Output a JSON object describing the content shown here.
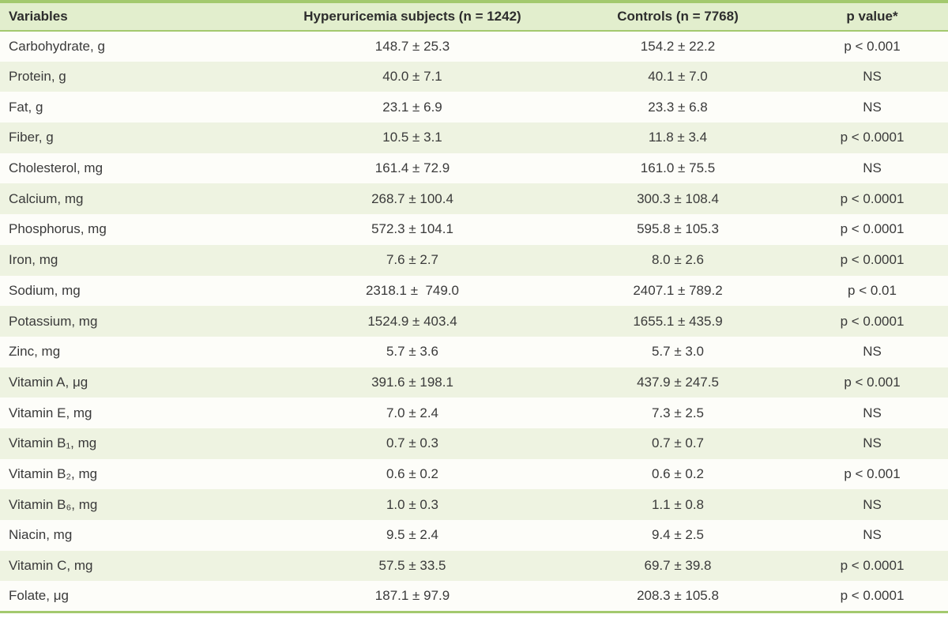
{
  "table": {
    "colors": {
      "accent_green": "#a3c96e",
      "header_background": "#e2eecd",
      "stripe_background": "#eef3e1",
      "text": "#3a3a3a"
    },
    "columns": [
      {
        "label": "Variables"
      },
      {
        "label": "Hyperuricemia subjects (n = 1242)"
      },
      {
        "label": "Controls (n = 7768)"
      },
      {
        "label": "p value*"
      }
    ],
    "rows": [
      {
        "variable": "Carbohydrate, g",
        "hyperuricemia": "148.7 ± 25.3",
        "controls": "154.2 ± 22.2",
        "p_value": "p < 0.001"
      },
      {
        "variable": "Protein, g",
        "hyperuricemia": "40.0 ± 7.1",
        "controls": "40.1 ± 7.0",
        "p_value": "NS"
      },
      {
        "variable": "Fat, g",
        "hyperuricemia": "23.1 ± 6.9",
        "controls": "23.3 ± 6.8",
        "p_value": "NS"
      },
      {
        "variable": "Fiber, g",
        "hyperuricemia": "10.5 ± 3.1",
        "controls": "11.8 ± 3.4",
        "p_value": "p < 0.0001"
      },
      {
        "variable": "Cholesterol, mg",
        "hyperuricemia": "161.4 ± 72.9",
        "controls": "161.0 ± 75.5",
        "p_value": "NS"
      },
      {
        "variable": "Calcium, mg",
        "hyperuricemia": "268.7 ± 100.4",
        "controls": "300.3 ± 108.4",
        "p_value": "p < 0.0001"
      },
      {
        "variable": "Phosphorus, mg",
        "hyperuricemia": "572.3 ± 104.1",
        "controls": "595.8 ± 105.3",
        "p_value": "p < 0.0001"
      },
      {
        "variable": "Iron, mg",
        "hyperuricemia": "7.6 ± 2.7",
        "controls": "8.0 ± 2.6",
        "p_value": "p < 0.0001"
      },
      {
        "variable": "Sodium, mg",
        "hyperuricemia": "2318.1 ±  749.0",
        "controls": "2407.1 ± 789.2",
        "p_value": "p < 0.01"
      },
      {
        "variable": "Potassium, mg",
        "hyperuricemia": "1524.9 ± 403.4",
        "controls": "1655.1 ± 435.9",
        "p_value": "p < 0.0001"
      },
      {
        "variable": "Zinc, mg",
        "hyperuricemia": "5.7 ± 3.6",
        "controls": "5.7 ± 3.0",
        "p_value": "NS"
      },
      {
        "variable": "Vitamin A, μg",
        "hyperuricemia": "391.6 ± 198.1",
        "controls": "437.9 ± 247.5",
        "p_value": "p < 0.001"
      },
      {
        "variable": "Vitamin E, mg",
        "hyperuricemia": "7.0 ± 2.4",
        "controls": "7.3 ± 2.5",
        "p_value": "NS"
      },
      {
        "variable": "Vitamin B₁, mg",
        "hyperuricemia": "0.7 ± 0.3",
        "controls": "0.7 ± 0.7",
        "p_value": "NS"
      },
      {
        "variable": "Vitamin B₂, mg",
        "hyperuricemia": "0.6 ± 0.2",
        "controls": "0.6 ± 0.2",
        "p_value": "p < 0.001"
      },
      {
        "variable": "Vitamin B₆, mg",
        "hyperuricemia": "1.0 ± 0.3",
        "controls": "1.1 ± 0.8",
        "p_value": "NS"
      },
      {
        "variable": "Niacin, mg",
        "hyperuricemia": "9.5 ± 2.4",
        "controls": "9.4 ± 2.5",
        "p_value": "NS"
      },
      {
        "variable": "Vitamin C, mg",
        "hyperuricemia": "57.5 ± 33.5",
        "controls": "69.7 ± 39.8",
        "p_value": "p < 0.0001"
      },
      {
        "variable": "Folate, μg",
        "hyperuricemia": "187.1 ± 97.9",
        "controls": "208.3 ± 105.8",
        "p_value": "p < 0.0001"
      }
    ]
  }
}
